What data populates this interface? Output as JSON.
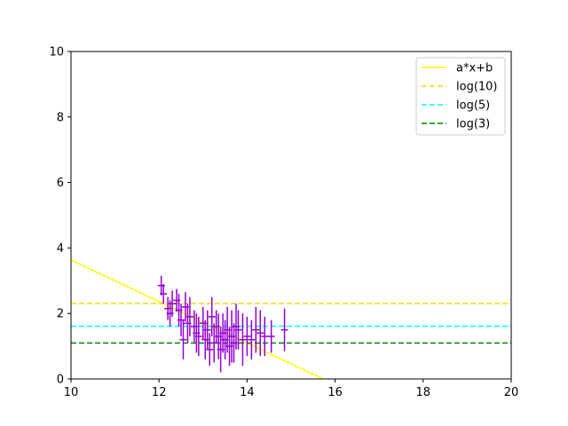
{
  "chart_data": {
    "type": "scatter",
    "title": "",
    "xlabel": "",
    "ylabel": "",
    "xlim": [
      10,
      20
    ],
    "ylim": [
      0,
      10
    ],
    "xticks": [
      "10",
      "12",
      "14",
      "16",
      "18",
      "20"
    ],
    "yticks": [
      "0",
      "2",
      "4",
      "6",
      "8",
      "10"
    ],
    "grid": false,
    "legend_position": "top-right",
    "series": [
      {
        "name": "a*x+b",
        "kind": "line",
        "style": "solid",
        "color": "#ffff00",
        "x": [
          10,
          15.73
        ],
        "y": [
          3.63,
          0
        ]
      },
      {
        "name": "log(10)",
        "kind": "hline",
        "style": "dashed",
        "color": "#ffd700",
        "y": 2.303
      },
      {
        "name": "log(5)",
        "kind": "hline",
        "style": "dashed",
        "color": "#00ffff",
        "y": 1.609
      },
      {
        "name": "log(3)",
        "kind": "hline",
        "style": "dashed",
        "color": "#008000",
        "y": 1.099
      },
      {
        "kind": "errorbar",
        "color": "#9400d3",
        "points": [
          {
            "x": 12.05,
            "y": 2.85,
            "err": 0.3
          },
          {
            "x": 12.1,
            "y": 2.6,
            "err": 0.3
          },
          {
            "x": 12.2,
            "y": 2.15,
            "err": 0.35
          },
          {
            "x": 12.25,
            "y": 2.0,
            "err": 0.4
          },
          {
            "x": 12.3,
            "y": 2.3,
            "err": 0.4
          },
          {
            "x": 12.4,
            "y": 2.4,
            "err": 0.35
          },
          {
            "x": 12.45,
            "y": 2.1,
            "err": 0.5
          },
          {
            "x": 12.5,
            "y": 1.8,
            "err": 0.5
          },
          {
            "x": 12.55,
            "y": 1.2,
            "err": 0.6
          },
          {
            "x": 12.6,
            "y": 2.2,
            "err": 0.45
          },
          {
            "x": 12.65,
            "y": 1.7,
            "err": 0.6
          },
          {
            "x": 12.7,
            "y": 1.9,
            "err": 0.6
          },
          {
            "x": 12.8,
            "y": 1.6,
            "err": 0.5
          },
          {
            "x": 12.85,
            "y": 1.4,
            "err": 0.6
          },
          {
            "x": 12.9,
            "y": 1.3,
            "err": 0.6
          },
          {
            "x": 13.0,
            "y": 1.7,
            "err": 0.5
          },
          {
            "x": 13.05,
            "y": 1.2,
            "err": 0.6
          },
          {
            "x": 13.1,
            "y": 1.5,
            "err": 0.6
          },
          {
            "x": 13.15,
            "y": 0.9,
            "err": 0.5
          },
          {
            "x": 13.2,
            "y": 1.9,
            "err": 0.6
          },
          {
            "x": 13.25,
            "y": 1.1,
            "err": 0.6
          },
          {
            "x": 13.3,
            "y": 1.6,
            "err": 0.5
          },
          {
            "x": 13.35,
            "y": 1.3,
            "err": 0.7
          },
          {
            "x": 13.4,
            "y": 0.9,
            "err": 0.7
          },
          {
            "x": 13.45,
            "y": 1.4,
            "err": 0.6
          },
          {
            "x": 13.5,
            "y": 1.2,
            "err": 0.6
          },
          {
            "x": 13.55,
            "y": 1.5,
            "err": 0.7
          },
          {
            "x": 13.6,
            "y": 1.0,
            "err": 0.6
          },
          {
            "x": 13.65,
            "y": 1.3,
            "err": 0.8
          },
          {
            "x": 13.7,
            "y": 1.1,
            "err": 0.6
          },
          {
            "x": 13.75,
            "y": 1.6,
            "err": 0.7
          },
          {
            "x": 13.8,
            "y": 1.5,
            "err": 0.6
          },
          {
            "x": 13.9,
            "y": 1.2,
            "err": 0.8
          },
          {
            "x": 14.0,
            "y": 1.3,
            "err": 0.6
          },
          {
            "x": 14.1,
            "y": 1.2,
            "err": 0.6
          },
          {
            "x": 14.2,
            "y": 1.5,
            "err": 0.7
          },
          {
            "x": 14.3,
            "y": 1.4,
            "err": 0.7
          },
          {
            "x": 14.4,
            "y": 1.3,
            "err": 0.6
          },
          {
            "x": 14.55,
            "y": 1.3,
            "err": 0.5
          },
          {
            "x": 14.85,
            "y": 1.5,
            "err": 0.65
          }
        ]
      }
    ]
  }
}
